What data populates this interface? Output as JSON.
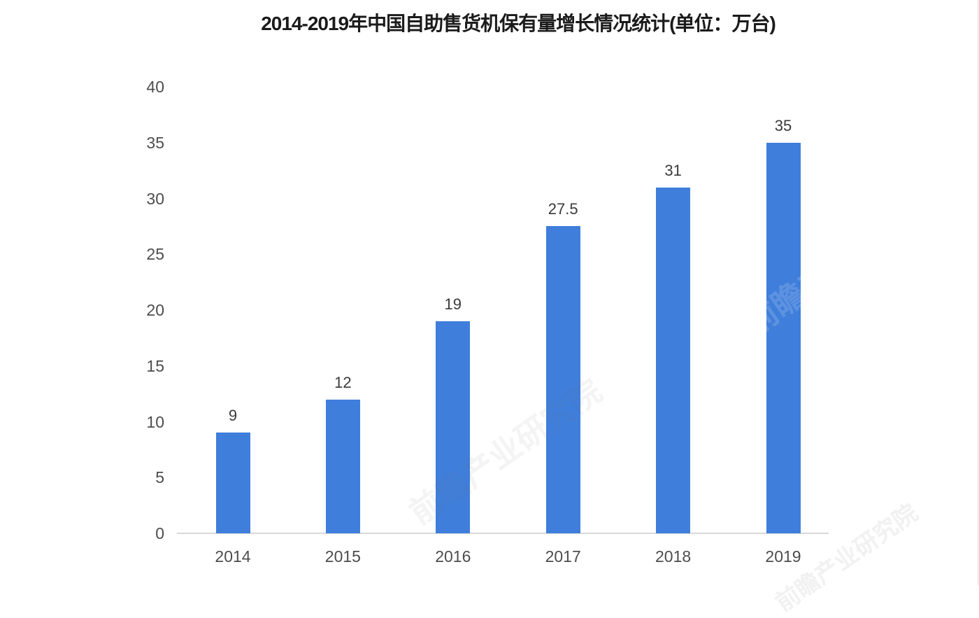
{
  "chart_data": {
    "type": "bar",
    "title": "2014-2019年中国自助售货机保有量增长情况统计(单位：万台)",
    "categories": [
      "2014",
      "2015",
      "2016",
      "2017",
      "2018",
      "2019"
    ],
    "values": [
      9,
      12,
      19,
      27.5,
      31,
      35
    ],
    "value_labels": [
      "9",
      "12",
      "19",
      "27.5",
      "31",
      "35"
    ],
    "xlabel": "",
    "ylabel": "",
    "unit": "万台",
    "ylim": [
      0,
      40
    ],
    "yticks": [
      0,
      5,
      10,
      15,
      20,
      25,
      30,
      35,
      40
    ],
    "grid": false,
    "legend_position": "none",
    "bar_color": "#3F7EDB",
    "axis_line_color": "#D9D9D9",
    "value_label_color": "#3A3A3A",
    "tick_label_color": "#4D4D4D",
    "title_color": "#1B1B1B",
    "background_color": "#FFFFFF"
  },
  "watermark": {
    "text": "前瞻产业研究院"
  }
}
